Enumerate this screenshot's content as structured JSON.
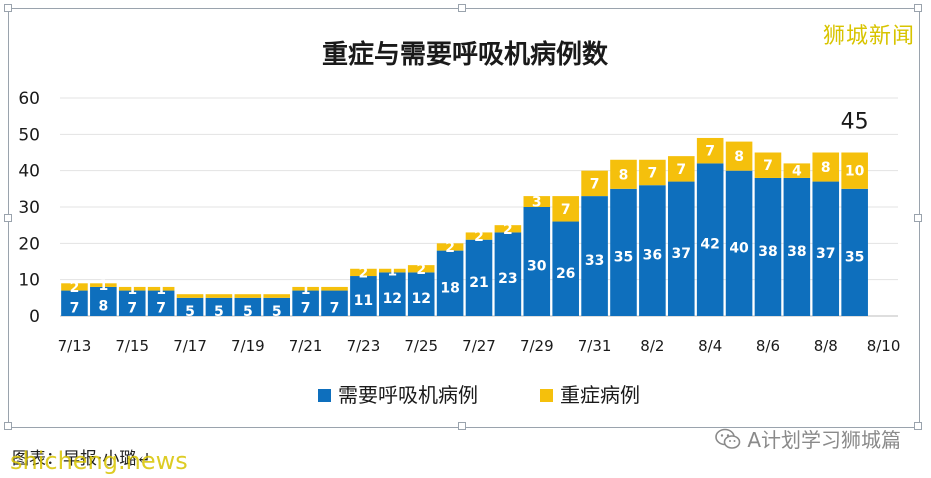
{
  "watermarks": {
    "top_right": "狮城新闻",
    "bottom_left": "shicheng.news",
    "bottom_right": "A计划学习狮城篇"
  },
  "caption": "图表：早报·小璐↵",
  "colors": {
    "ventilator": "#0e6fbd",
    "severe": "#f5c00c",
    "text": "#1a1a1a",
    "grid": "#e3e3e3"
  },
  "chart_data": {
    "type": "bar",
    "stacked": true,
    "title": "重症与需要呼吸机病例数",
    "categories": [
      "7/13",
      "7/14",
      "7/15",
      "7/16",
      "7/17",
      "7/18",
      "7/19",
      "7/20",
      "7/21",
      "7/22",
      "7/23",
      "7/24",
      "7/25",
      "7/26",
      "7/27",
      "7/28",
      "7/29",
      "7/30",
      "7/31",
      "8/1",
      "8/2",
      "8/3",
      "8/4",
      "8/5",
      "8/6",
      "8/7",
      "8/8",
      "8/9",
      "8/10"
    ],
    "tick_labels": [
      "7/13",
      "7/15",
      "7/17",
      "7/19",
      "7/21",
      "7/23",
      "7/25",
      "7/27",
      "7/29",
      "7/31",
      "8/2",
      "8/4",
      "8/6",
      "8/8",
      "8/10"
    ],
    "series": [
      {
        "name": "需要呼吸机病例",
        "color": "#0e6fbd",
        "values": [
          7,
          8,
          7,
          7,
          5,
          5,
          5,
          5,
          7,
          7,
          11,
          12,
          12,
          18,
          21,
          23,
          30,
          26,
          33,
          35,
          36,
          37,
          42,
          40,
          38,
          38,
          37,
          35,
          null
        ]
      },
      {
        "name": "重症病例",
        "color": "#f5c00c",
        "values": [
          2,
          1,
          1,
          1,
          1,
          1,
          1,
          1,
          1,
          1,
          2,
          1,
          2,
          2,
          2,
          2,
          3,
          7,
          7,
          8,
          7,
          7,
          7,
          8,
          7,
          4,
          8,
          10,
          null
        ]
      }
    ],
    "bar_labels": {
      "ventilator": [
        "7",
        "8",
        "7",
        "7",
        "5",
        "5",
        "5",
        "5",
        "7",
        "7",
        "11",
        "12",
        "12",
        "18",
        "21",
        "23",
        "30",
        "26",
        "33",
        "35",
        "36",
        "37",
        "42",
        "40",
        "38",
        "38",
        "37",
        "35",
        ""
      ],
      "severe": [
        "2",
        "1",
        "1",
        "1",
        "",
        "",
        "",
        "",
        "1",
        "",
        "2",
        "1",
        "2",
        "2",
        "2",
        "2",
        "3",
        "7",
        "7",
        "8",
        "7",
        "7",
        "7",
        "8",
        "7",
        "4",
        "8",
        "10",
        ""
      ]
    },
    "annotation": {
      "label": "45",
      "category": "8/9"
    },
    "yticks": [
      "0",
      "10",
      "20",
      "30",
      "40",
      "50",
      "60"
    ],
    "ylim": [
      0,
      60
    ],
    "grid": true,
    "legend_position": "bottom"
  }
}
